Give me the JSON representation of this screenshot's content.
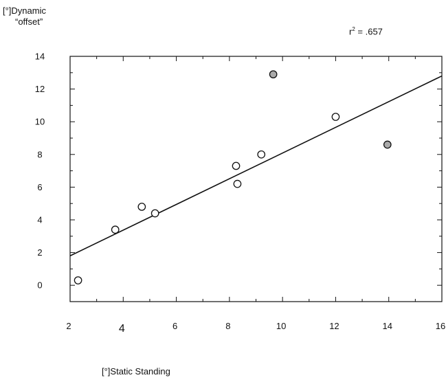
{
  "chart_data": {
    "type": "scatter",
    "title": "",
    "ylabel_lines": [
      "[°]Dynamic",
      "“offset”"
    ],
    "xlabel": "[°]Static Standing",
    "annotation": {
      "r_text": "r",
      "superscript": "2",
      "value_text": " = .657"
    },
    "xlim": [
      2,
      16
    ],
    "ylim": [
      -1,
      14
    ],
    "xticks": [
      {
        "value": 2,
        "label": "2"
      },
      {
        "value": 4,
        "label": "4"
      },
      {
        "value": 6,
        "label": "6"
      },
      {
        "value": 8,
        "label": "8"
      },
      {
        "value": 10,
        "label": "10"
      },
      {
        "value": 12,
        "label": "12"
      },
      {
        "value": 14,
        "label": "14"
      },
      {
        "value": 16,
        "label": "16"
      }
    ],
    "yticks": [
      {
        "value": 0,
        "label": "0"
      },
      {
        "value": 2,
        "label": "2"
      },
      {
        "value": 4,
        "label": "4"
      },
      {
        "value": 6,
        "label": "6"
      },
      {
        "value": 8,
        "label": "8"
      },
      {
        "value": 10,
        "label": "10"
      },
      {
        "value": 12,
        "label": "12"
      },
      {
        "value": 14,
        "label": "14"
      }
    ],
    "regression_line": {
      "x": [
        2,
        16
      ],
      "y": [
        1.8,
        12.8
      ]
    },
    "points": [
      {
        "x": 2.3,
        "y": 0.3,
        "fill": "#ffffff"
      },
      {
        "x": 3.7,
        "y": 3.4,
        "fill": "#ffffff"
      },
      {
        "x": 4.7,
        "y": 4.8,
        "fill": "#ffffff"
      },
      {
        "x": 5.2,
        "y": 4.4,
        "fill": "#ffffff"
      },
      {
        "x": 8.25,
        "y": 7.3,
        "fill": "#ffffff"
      },
      {
        "x": 8.3,
        "y": 6.2,
        "fill": "#ffffff"
      },
      {
        "x": 9.2,
        "y": 8.0,
        "fill": "#ffffff"
      },
      {
        "x": 9.65,
        "y": 12.9,
        "fill": "#aaaaaa"
      },
      {
        "x": 12.0,
        "y": 10.3,
        "fill": "#ffffff"
      },
      {
        "x": 13.95,
        "y": 8.6,
        "fill": "#aaaaaa"
      }
    ],
    "grid": false,
    "colors": {
      "axis": "#111111",
      "line": "#111111",
      "open_point": "#ffffff",
      "filled_point": "#aaaaaa"
    }
  }
}
